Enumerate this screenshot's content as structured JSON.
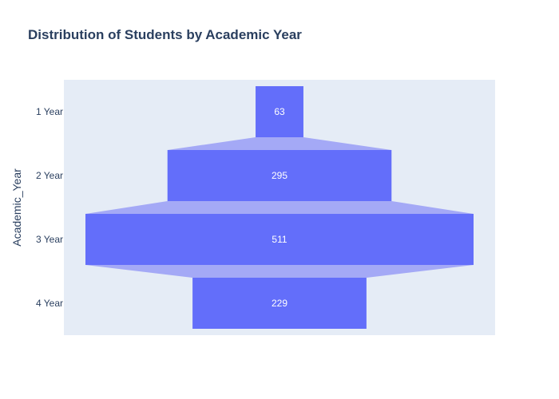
{
  "chart_data": {
    "type": "funnel",
    "title": "Distribution of Students by Academic Year",
    "ylabel": "Academic_Year",
    "categories": [
      "1 Year",
      "2 Year",
      "3 Year",
      "4 Year"
    ],
    "values": [
      63,
      295,
      511,
      229
    ],
    "bar_color": "#636efa",
    "connector_color": "#a4a9f6",
    "plot_background": "#e5ecf6",
    "text_color": "#2a3f5f",
    "value_label_color": "#ffffff",
    "grid": false,
    "legend": "none"
  }
}
